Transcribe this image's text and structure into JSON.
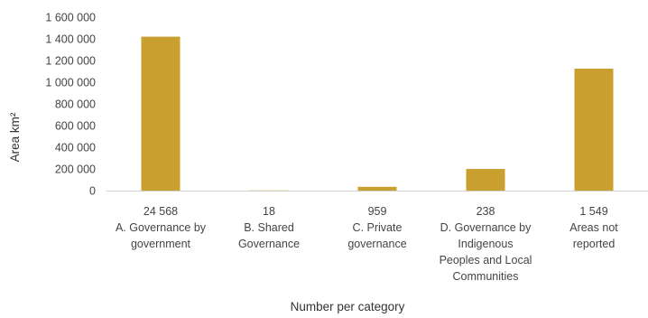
{
  "chart_data": {
    "type": "bar",
    "categories": [
      {
        "count": "24 568",
        "label_lines": [
          "A. Governance by",
          "government"
        ]
      },
      {
        "count": "18",
        "label_lines": [
          "B. Shared",
          "Governance"
        ]
      },
      {
        "count": "959",
        "label_lines": [
          "C. Private",
          "governance"
        ]
      },
      {
        "count": "238",
        "label_lines": [
          "D. Governance by",
          "Indigenous",
          "Peoples and Local",
          "Communities"
        ]
      },
      {
        "count": "1 549",
        "label_lines": [
          "Areas not",
          "reported"
        ]
      }
    ],
    "values": [
      1420000,
      2000,
      35000,
      200000,
      1125000
    ],
    "xlabel": "Number per category",
    "ylabel": "Area km²",
    "ylim": [
      0,
      1600000
    ],
    "yticks": [
      0,
      200000,
      400000,
      600000,
      800000,
      1000000,
      1200000,
      1400000,
      1600000
    ],
    "ytick_labels": [
      "0",
      "200 000",
      "400 000",
      "600 000",
      "800 000",
      "1 000 000",
      "1 200 000",
      "1 400 000",
      "1 600 000"
    ],
    "grid": false,
    "bar_color": "#C9A02F",
    "axis_color": "#d0d0d0"
  }
}
